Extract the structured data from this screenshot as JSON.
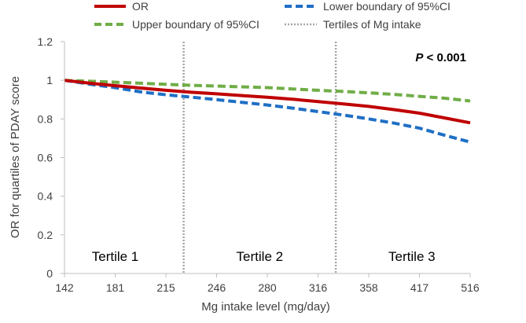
{
  "chart_data": {
    "type": "line",
    "title": "",
    "xlabel": "Mg intake level (mg/day)",
    "ylabel": "OR for quartiles of PDAY score",
    "x_categories": [
      "142",
      "181",
      "215",
      "246",
      "280",
      "316",
      "358",
      "417",
      "516"
    ],
    "x_range": [
      0,
      8
    ],
    "ylim": [
      0,
      1.2
    ],
    "y_ticks": [
      0,
      0.2,
      0.4,
      0.6,
      0.8,
      1,
      1.2
    ],
    "y_tick_labels": [
      "0",
      "0.2",
      "0.4",
      "0.6",
      "0.8",
      "1",
      "1.2"
    ],
    "grid": false,
    "series": [
      {
        "name": "OR",
        "key": "or",
        "color": "#c00000",
        "dash": "solid",
        "x": [
          0,
          0.5,
          1,
          1.5,
          2,
          2.5,
          3,
          3.5,
          4,
          4.5,
          5,
          5.5,
          6,
          6.5,
          7,
          7.5,
          8
        ],
        "y": [
          1.0,
          0.985,
          0.972,
          0.96,
          0.948,
          0.938,
          0.93,
          0.921,
          0.912,
          0.902,
          0.89,
          0.878,
          0.865,
          0.848,
          0.83,
          0.805,
          0.78
        ]
      },
      {
        "name": "Lower boundary of 95%CI",
        "key": "lower",
        "color": "#1f6fc5",
        "dash": "dashed",
        "x": [
          0,
          0.5,
          1,
          1.5,
          2,
          2.5,
          3,
          3.5,
          4,
          4.5,
          5,
          5.5,
          6,
          6.5,
          7,
          7.5,
          8
        ],
        "y": [
          1.0,
          0.98,
          0.962,
          0.94,
          0.925,
          0.913,
          0.9,
          0.886,
          0.872,
          0.856,
          0.838,
          0.82,
          0.8,
          0.778,
          0.752,
          0.715,
          0.68
        ]
      },
      {
        "name": "Upper boundary of 95%CI",
        "key": "upper",
        "color": "#70ad47",
        "dash": "dashed",
        "x": [
          0,
          0.5,
          1,
          1.5,
          2,
          2.5,
          3,
          3.5,
          4,
          4.5,
          5,
          5.5,
          6,
          6.5,
          7,
          7.5,
          8
        ],
        "y": [
          1.0,
          0.995,
          0.99,
          0.985,
          0.979,
          0.974,
          0.97,
          0.966,
          0.962,
          0.955,
          0.948,
          0.942,
          0.935,
          0.927,
          0.917,
          0.907,
          0.893
        ]
      }
    ],
    "tertile_cutoffs": [
      {
        "name": "Tertiles of Mg intake",
        "x": 2.35
      },
      {
        "name": "Tertiles of Mg intake",
        "x": 5.35
      }
    ],
    "tertile_line_color": "#a6a6a6",
    "tertile_labels": [
      {
        "text": "Tertile 1",
        "x": 1.0,
        "y": 0.09
      },
      {
        "text": "Tertile 2",
        "x": 3.85,
        "y": 0.09
      },
      {
        "text": "Tertile 3",
        "x": 6.85,
        "y": 0.09
      }
    ],
    "annotation": {
      "italic": "P",
      "rest": " < 0.001"
    },
    "legend": [
      {
        "label": "OR",
        "series": "or"
      },
      {
        "label": "Lower boundary of 95%CI",
        "series": "lower"
      },
      {
        "label": "Upper boundary of 95%CI",
        "series": "upper"
      },
      {
        "label": "Tertiles of Mg intake",
        "series": "tertile"
      }
    ],
    "legend_position": "top"
  }
}
